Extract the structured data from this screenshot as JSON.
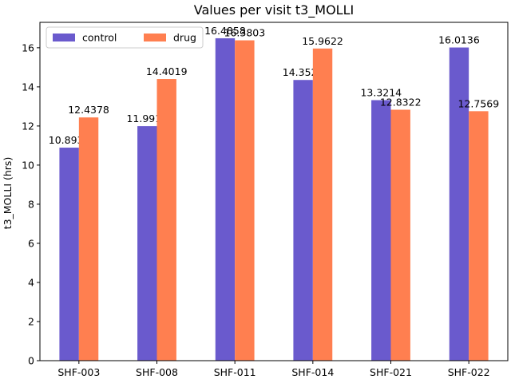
{
  "chart_data": {
    "type": "bar",
    "title": "Values per visit t3_MOLLI",
    "xlabel": "",
    "ylabel": "t3_MOLLI (hrs)",
    "categories": [
      "SHF-003",
      "SHF-008",
      "SHF-011",
      "SHF-014",
      "SHF-021",
      "SHF-022"
    ],
    "series": [
      {
        "name": "control",
        "color": "#6a5acd",
        "values": [
          10.8931,
          11.9911,
          16.4858,
          14.3528,
          13.3214,
          16.0136
        ],
        "labels": [
          "10.8931",
          "11.9911",
          "16.4858",
          "14.3528",
          "13.3214",
          "16.0136"
        ]
      },
      {
        "name": "drug",
        "color": "#ff7f50",
        "values": [
          12.4378,
          14.4019,
          16.3803,
          15.9622,
          12.8322,
          12.7569
        ],
        "labels": [
          "12.4378",
          "14.4019",
          "16.3803",
          "15.9622",
          "12.8322",
          "12.7569"
        ]
      }
    ],
    "ylim": [
      0,
      17.3
    ],
    "yticks": [
      0,
      2,
      4,
      6,
      8,
      10,
      12,
      14,
      16
    ],
    "grid": false,
    "legend_position": "top-left"
  }
}
